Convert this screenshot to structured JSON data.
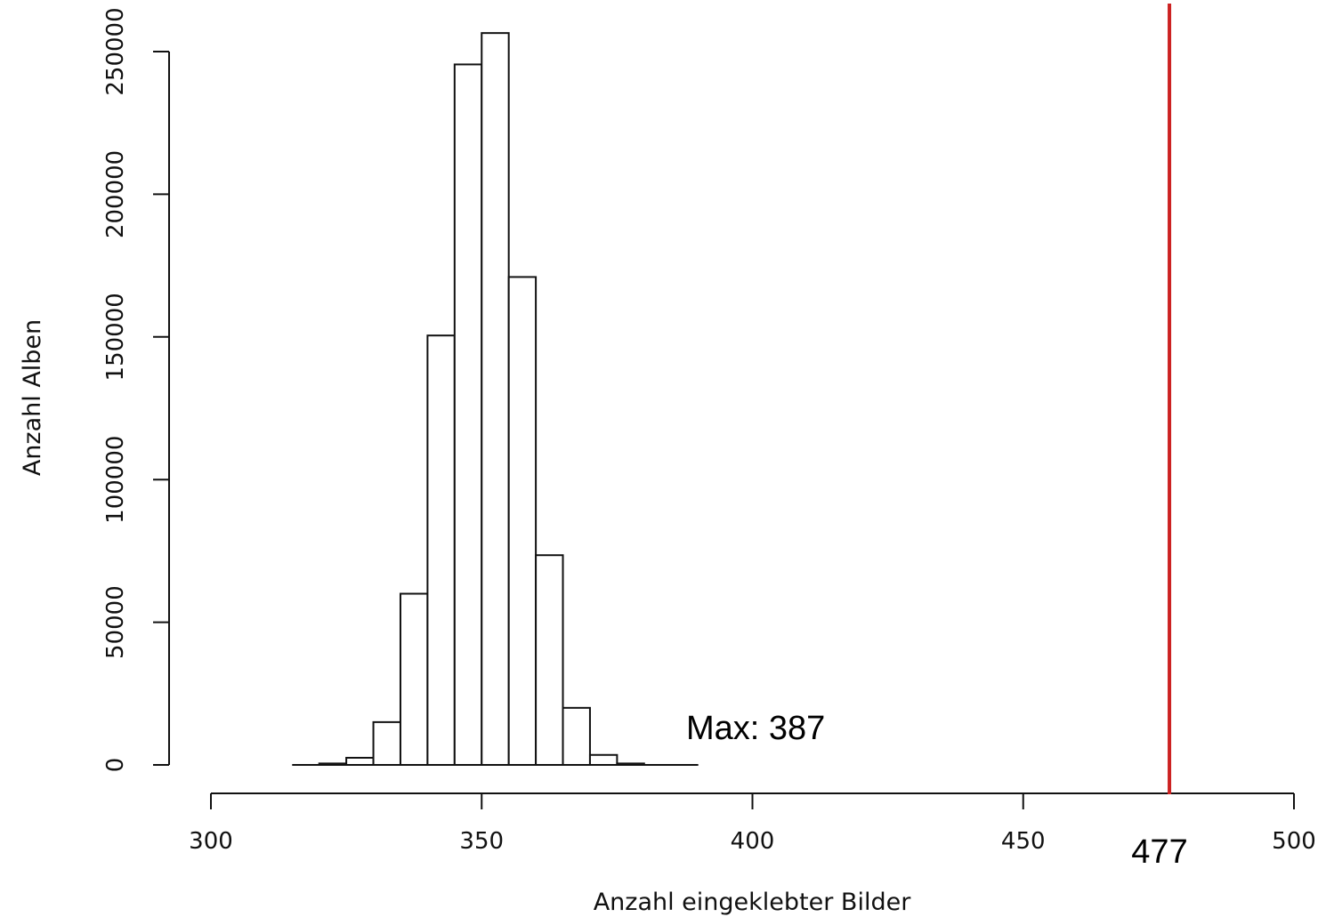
{
  "chart_data": {
    "type": "bar",
    "title": "",
    "xlabel": "Anzahl eingeklebter Bilder",
    "ylabel": "Anzahl Alben",
    "xlim": [
      300,
      500
    ],
    "ylim": [
      0,
      250000
    ],
    "x_ticks": [
      "300",
      "350",
      "400",
      "450",
      "500"
    ],
    "y_ticks": [
      "0",
      "50000",
      "100000",
      "150000",
      "200000",
      "250000"
    ],
    "bin_width": 5,
    "bins_start": [
      315,
      320,
      325,
      330,
      335,
      340,
      345,
      350,
      355,
      360,
      365,
      370,
      375,
      380,
      385
    ],
    "values": [
      0,
      500,
      2500,
      15000,
      60000,
      150500,
      245500,
      256500,
      171000,
      73500,
      20000,
      3500,
      500,
      0,
      0
    ],
    "grid": false,
    "annotations": {
      "max_label": "Max: 387",
      "reference_line": {
        "x": 477,
        "label": "477",
        "color": "#cc2222"
      }
    }
  },
  "colors": {
    "bar_fill": "#ffffff",
    "bar_stroke": "#111111",
    "axis": "#111111"
  }
}
